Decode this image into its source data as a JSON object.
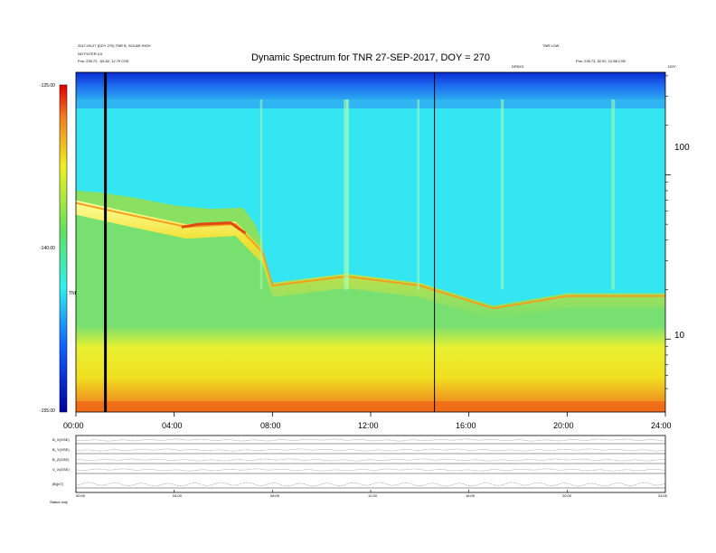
{
  "header": {
    "title": "Dynamic Spectrum for TNR 27-SEP-2017, DOY = 270",
    "left_line1": "2017-09-27 (DOY 270) TNR B, SOLAR HIGH",
    "left_line2": "NO FILTER 4.0",
    "left_line3": "Pos: 235.72, -53.82, 12.79 CSE",
    "right_line1": "TNR LOW",
    "right_line2": "Pos: 235.73, 52.52, 12.88 CSE",
    "mid_marker": "DFBXX",
    "far_right": "DOY"
  },
  "colorbar": {
    "max_label": "-125.00",
    "mid_label": "-140.00",
    "min_label": "-155.00",
    "unit_label": "TNR"
  },
  "chart_data": [
    {
      "type": "heatmap",
      "title": "Dynamic Spectrum for TNR 27-SEP-2017, DOY = 270",
      "x_ticks": [
        "00:00",
        "04:00",
        "08:00",
        "12:00",
        "16:00",
        "20:00",
        "24:00"
      ],
      "x_range_hours": [
        0,
        24
      ],
      "y_ticks": [
        "100",
        "10"
      ],
      "y_scale": "log",
      "colorbar_range": [
        -155.0,
        -125.0
      ],
      "colorbar_ticks": [
        "-125.00",
        "-140.00",
        "-155.00"
      ],
      "vertical_markers_hours": [
        1.2,
        14.6
      ],
      "feature_upper_boundary": [
        {
          "t": 0.0,
          "f": 70
        },
        {
          "t": 2.0,
          "f": 60
        },
        {
          "t": 4.5,
          "f": 50
        },
        {
          "t": 6.5,
          "f": 52
        },
        {
          "t": 7.6,
          "f": 35
        },
        {
          "t": 8.0,
          "f": 22
        },
        {
          "t": 11.0,
          "f": 25
        },
        {
          "t": 14.0,
          "f": 22
        },
        {
          "t": 17.0,
          "f": 16
        },
        {
          "t": 20.0,
          "f": 19
        },
        {
          "t": 24.0,
          "f": 19
        }
      ]
    },
    {
      "type": "line",
      "title": "",
      "x_ticks": [
        "00:00",
        "04:00",
        "08:00",
        "12:00",
        "16:00",
        "20:00",
        "24:00"
      ],
      "rows": [
        {
          "label": "B_X(GSE)"
        },
        {
          "label": "B_Y(GSE)"
        },
        {
          "label": "B_Z(GSE)"
        },
        {
          "label": "V_X(GSE)"
        },
        {
          "label": "|B|(nT)"
        }
      ]
    }
  ],
  "bottom_panel": {
    "row_labels": [
      "B_X(GSE)",
      "B_Y(GSE)",
      "B_Z(GSE)",
      "V_X(GSE)",
      "|B|(nT)"
    ],
    "footer_label": "Status  only"
  },
  "colors": {
    "background": "#ffffff",
    "heat_low": "#1010a0",
    "heat_mid": "#30e8f0",
    "heat_green": "#78e070",
    "heat_yellow": "#f0f020",
    "heat_high": "#e04010"
  }
}
